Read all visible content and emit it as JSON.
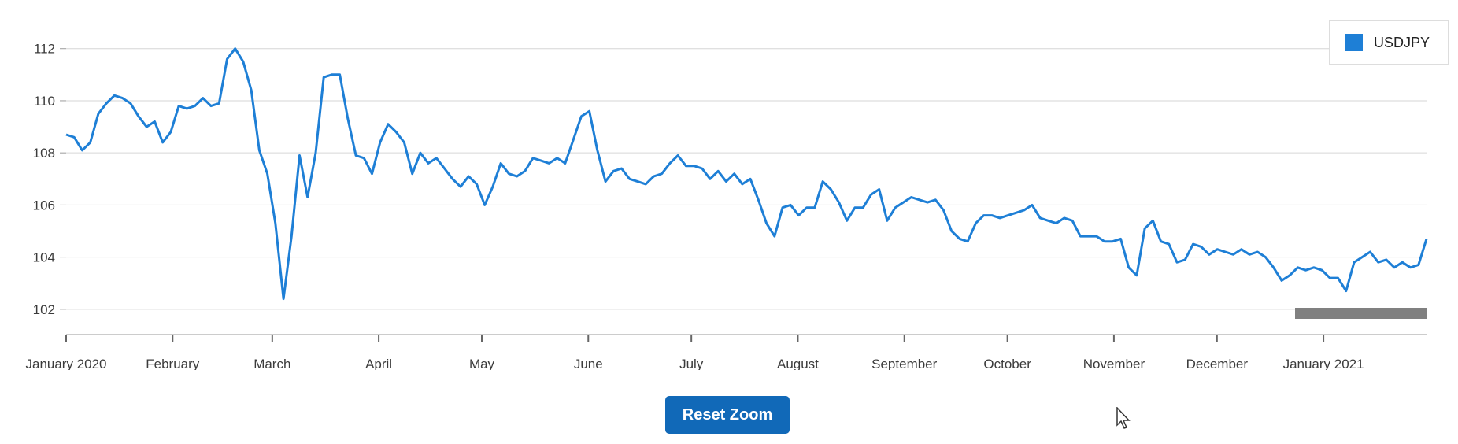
{
  "colors": {
    "series": "#1e7fd6",
    "grid": "#d6d6d6",
    "axis": "#9a9a9a",
    "button": "#1169b8",
    "navigator": "#808080"
  },
  "legend": {
    "label": "USDJPY"
  },
  "reset_button": {
    "label": "Reset Zoom"
  },
  "chart_data": {
    "type": "line",
    "series": [
      {
        "name": "USDJPY",
        "values": [
          108.7,
          108.6,
          108.1,
          108.4,
          109.5,
          109.9,
          110.2,
          110.1,
          109.9,
          109.4,
          109.0,
          109.2,
          108.4,
          108.8,
          109.8,
          109.7,
          109.8,
          110.1,
          109.8,
          109.9,
          111.6,
          112.0,
          111.5,
          110.4,
          108.1,
          107.2,
          105.3,
          102.4,
          104.8,
          107.9,
          106.3,
          108.0,
          110.9,
          111.0,
          111.0,
          109.3,
          107.9,
          107.8,
          107.2,
          108.4,
          109.1,
          108.8,
          108.4,
          107.2,
          108.0,
          107.6,
          107.8,
          107.4,
          107.0,
          106.7,
          107.1,
          106.8,
          106.0,
          106.7,
          107.6,
          107.2,
          107.1,
          107.3,
          107.8,
          107.7,
          107.6,
          107.8,
          107.6,
          108.5,
          109.4,
          109.6,
          108.1,
          106.9,
          107.3,
          107.4,
          107.0,
          106.9,
          106.8,
          107.1,
          107.2,
          107.6,
          107.9,
          107.5,
          107.5,
          107.4,
          107.0,
          107.3,
          106.9,
          107.2,
          106.8,
          107.0,
          106.2,
          105.3,
          104.8,
          105.9,
          106.0,
          105.6,
          105.9,
          105.9,
          106.9,
          106.6,
          106.1,
          105.4,
          105.9,
          105.9,
          106.4,
          106.6,
          105.4,
          105.9,
          106.1,
          106.3,
          106.2,
          106.1,
          106.2,
          105.8,
          105.0,
          104.7,
          104.6,
          105.3,
          105.6,
          105.6,
          105.5,
          105.6,
          105.7,
          105.8,
          106.0,
          105.5,
          105.4,
          105.3,
          105.5,
          105.4,
          104.8,
          104.8,
          104.8,
          104.6,
          104.6,
          104.7,
          103.6,
          103.3,
          105.1,
          105.4,
          104.6,
          104.5,
          103.8,
          103.9,
          104.5,
          104.4,
          104.1,
          104.3,
          104.2,
          104.1,
          104.3,
          104.1,
          104.2,
          104.0,
          103.6,
          103.1,
          103.3,
          103.6,
          103.5,
          103.6,
          103.5,
          103.2,
          103.2,
          102.7,
          103.8,
          104.0,
          104.2,
          103.8,
          103.9,
          103.6,
          103.8,
          103.6,
          103.7,
          104.7
        ]
      }
    ],
    "x_start": "2020-01-01",
    "x_end": "2021-01-31",
    "x_ticks": [
      {
        "date": "2020-01-01",
        "label": "January 2020"
      },
      {
        "date": "2020-02-01",
        "label": "February"
      },
      {
        "date": "2020-03-01",
        "label": "March"
      },
      {
        "date": "2020-04-01",
        "label": "April"
      },
      {
        "date": "2020-05-01",
        "label": "May"
      },
      {
        "date": "2020-06-01",
        "label": "June"
      },
      {
        "date": "2020-07-01",
        "label": "July"
      },
      {
        "date": "2020-08-01",
        "label": "August"
      },
      {
        "date": "2020-09-01",
        "label": "September"
      },
      {
        "date": "2020-10-01",
        "label": "October"
      },
      {
        "date": "2020-11-01",
        "label": "November"
      },
      {
        "date": "2020-12-01",
        "label": "December"
      },
      {
        "date": "2021-01-01",
        "label": "January 2021"
      }
    ],
    "y_ticks": [
      102,
      104,
      106,
      108,
      110,
      112
    ],
    "ylim": [
      101.3,
      113.2
    ],
    "grid": true,
    "legend_position": "top-right"
  }
}
